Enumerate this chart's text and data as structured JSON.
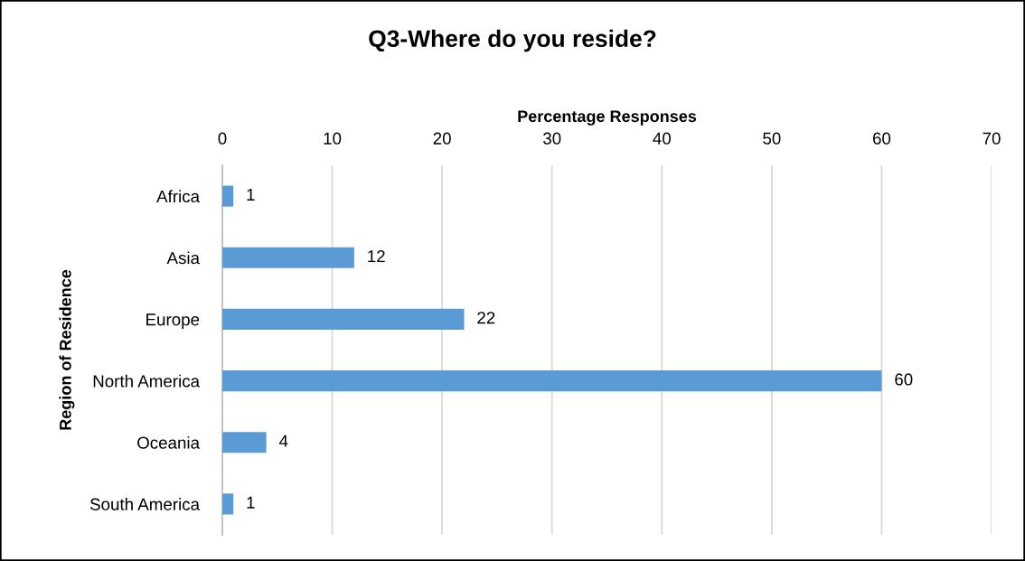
{
  "chart_data": {
    "type": "bar",
    "orientation": "horizontal",
    "title": "Q3-Where do you reside?",
    "xlabel": "Percentage Responses",
    "ylabel": "Region of Residence",
    "categories": [
      "Africa",
      "Asia",
      "Europe",
      "North America",
      "Oceania",
      "South America"
    ],
    "values": [
      1,
      12,
      22,
      60,
      4,
      1
    ],
    "color": "#5b9bd5",
    "xlim": [
      0,
      70
    ],
    "xticks": [
      0,
      10,
      20,
      30,
      40,
      50,
      60,
      70
    ],
    "grid": "x",
    "data_labels": true
  }
}
